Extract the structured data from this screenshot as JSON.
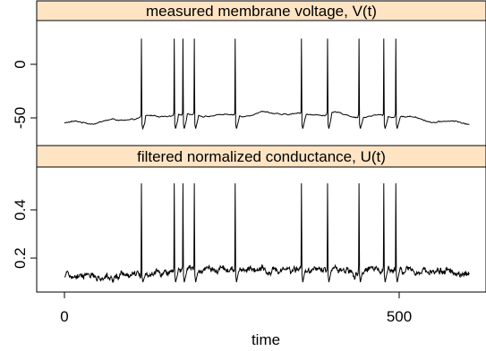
{
  "chart_data": {
    "type": "line",
    "xlabel": "time",
    "x_range": [
      0,
      600
    ],
    "x_ticks": [
      0,
      500
    ],
    "x_tick_labels": [
      "0",
      "500"
    ],
    "strip_color": "#FFE4C4",
    "line_color": "#000000",
    "spike_times": [
      115,
      164,
      177,
      194,
      255,
      354,
      393,
      440,
      477,
      495
    ],
    "panels": [
      {
        "strip_title": "measured membrane voltage, V(t)",
        "ylim": [
          -62,
          28
        ],
        "y_ticks": [
          0,
          -50
        ],
        "y_tick_labels": [
          "0",
          "-50"
        ],
        "baseline": [
          [
            0,
            -55
          ],
          [
            40,
            -54
          ],
          [
            90,
            -52
          ],
          [
            110,
            -50
          ],
          [
            150,
            -48
          ],
          [
            200,
            -47
          ],
          [
            250,
            -48
          ],
          [
            300,
            -45
          ],
          [
            350,
            -47
          ],
          [
            400,
            -46
          ],
          [
            450,
            -49
          ],
          [
            500,
            -48
          ],
          [
            550,
            -53
          ],
          [
            605,
            -55
          ]
        ],
        "spike_peak": 24,
        "spike_trough": -60
      },
      {
        "strip_title": "filtered normalized conductance, U(t)",
        "ylim": [
          0.08,
          0.58
        ],
        "y_ticks": [
          0.2,
          0.4
        ],
        "y_tick_labels": [
          "0.2",
          "0.4"
        ],
        "baseline": [
          [
            0,
            0.125
          ],
          [
            100,
            0.13
          ],
          [
            200,
            0.15
          ],
          [
            300,
            0.155
          ],
          [
            400,
            0.15
          ],
          [
            500,
            0.15
          ],
          [
            605,
            0.135
          ]
        ],
        "spike_peak": 0.51,
        "spike_trough": 0.1
      }
    ]
  }
}
